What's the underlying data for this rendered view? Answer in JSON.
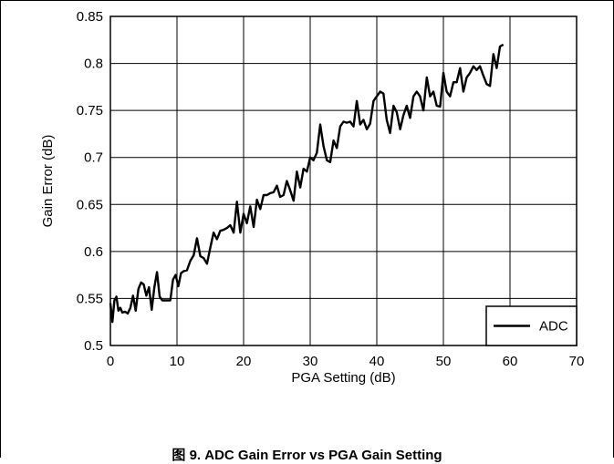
{
  "caption": "图 9. ADC Gain Error vs PGA Gain Setting",
  "chart_data": {
    "type": "line",
    "xlabel": "PGA Setting (dB)",
    "ylabel": "Gain Error (dB)",
    "xlim": [
      0,
      70
    ],
    "ylim": [
      0.5,
      0.85
    ],
    "xticks": [
      0,
      10,
      20,
      30,
      40,
      50,
      60,
      70
    ],
    "yticks": [
      0.5,
      0.55,
      0.6,
      0.65,
      0.7,
      0.75,
      0.8,
      0.85
    ],
    "grid": true,
    "legend_position": "bottom-right",
    "series": [
      {
        "name": "ADC",
        "color": "#000000",
        "x": [
          0,
          0.3,
          0.6,
          0.9,
          1.2,
          1.5,
          1.8,
          2.2,
          2.6,
          3.0,
          3.4,
          3.8,
          4.2,
          4.6,
          5.0,
          5.4,
          5.8,
          6.2,
          6.6,
          7.0,
          7.4,
          7.8,
          8.2,
          8.6,
          9.0,
          9.4,
          9.8,
          10.2,
          10.6,
          11.0,
          11.5,
          12.0,
          12.5,
          13.0,
          13.5,
          14.0,
          14.5,
          15.0,
          15.5,
          16.0,
          16.5,
          17.0,
          17.5,
          18.0,
          18.5,
          19.0,
          19.5,
          20.0,
          20.5,
          21.0,
          21.5,
          22.0,
          22.5,
          23.0,
          23.5,
          24.0,
          24.5,
          25.0,
          25.5,
          26.0,
          26.5,
          27.0,
          27.5,
          28.0,
          28.5,
          29.0,
          29.5,
          30.0,
          30.5,
          31.0,
          31.5,
          32.0,
          32.5,
          33.0,
          33.5,
          34.0,
          34.5,
          35.0,
          35.5,
          36.0,
          36.5,
          37.0,
          37.5,
          38.0,
          38.5,
          39.0,
          39.5,
          40.0,
          40.5,
          41.0,
          41.5,
          42.0,
          42.5,
          43.0,
          43.5,
          44.0,
          44.5,
          45.0,
          45.5,
          46.0,
          46.5,
          47.0,
          47.5,
          48.0,
          48.5,
          49.0,
          49.5,
          50.0,
          50.5,
          51.0,
          51.5,
          52.0,
          52.5,
          53.0,
          53.5,
          54.0,
          54.5,
          55.0,
          55.5,
          56.0,
          56.5,
          57.0,
          57.5,
          58.0,
          58.5,
          59.0
        ],
        "values": [
          0.545,
          0.525,
          0.548,
          0.552,
          0.537,
          0.54,
          0.535,
          0.536,
          0.534,
          0.54,
          0.553,
          0.537,
          0.56,
          0.567,
          0.565,
          0.553,
          0.562,
          0.538,
          0.562,
          0.578,
          0.552,
          0.548,
          0.548,
          0.548,
          0.548,
          0.57,
          0.575,
          0.563,
          0.577,
          0.579,
          0.58,
          0.59,
          0.596,
          0.614,
          0.595,
          0.593,
          0.587,
          0.604,
          0.62,
          0.613,
          0.622,
          0.623,
          0.625,
          0.628,
          0.62,
          0.653,
          0.62,
          0.64,
          0.63,
          0.648,
          0.626,
          0.655,
          0.645,
          0.66,
          0.66,
          0.662,
          0.663,
          0.67,
          0.658,
          0.66,
          0.675,
          0.665,
          0.654,
          0.685,
          0.668,
          0.688,
          0.685,
          0.7,
          0.697,
          0.705,
          0.735,
          0.712,
          0.697,
          0.695,
          0.718,
          0.71,
          0.733,
          0.738,
          0.737,
          0.738,
          0.733,
          0.76,
          0.735,
          0.74,
          0.73,
          0.736,
          0.76,
          0.765,
          0.77,
          0.768,
          0.74,
          0.726,
          0.755,
          0.748,
          0.73,
          0.745,
          0.755,
          0.742,
          0.765,
          0.77,
          0.765,
          0.75,
          0.785,
          0.765,
          0.77,
          0.755,
          0.754,
          0.79,
          0.77,
          0.765,
          0.78,
          0.78,
          0.795,
          0.77,
          0.785,
          0.79,
          0.797,
          0.793,
          0.797,
          0.787,
          0.778,
          0.776,
          0.81,
          0.795,
          0.818,
          0.82
        ]
      }
    ]
  }
}
